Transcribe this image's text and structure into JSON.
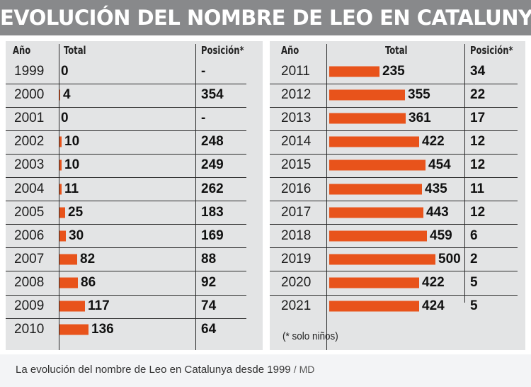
{
  "title": "EVOLUCIÓN DEL NOMBRE DE LEO EN CATALUNYA",
  "headers": {
    "year": "Año",
    "total": "Total",
    "position": "Posición*"
  },
  "footnote": "(* solo niños)",
  "caption": "La evolución del nombre de Leo en Catalunya desde 1999",
  "caption_source": "/ MD",
  "colors": {
    "bar": "#e8531b",
    "title_bg": "#88898b",
    "panel_bg": "#e3e4e5"
  },
  "chart_data": {
    "type": "bar",
    "title": "EVOLUCIÓN DEL NOMBRE DE LEO EN CATALUNYA",
    "columns": [
      "Año",
      "Total",
      "Posición*"
    ],
    "rows": [
      {
        "year": "1999",
        "total": 0,
        "position": "-"
      },
      {
        "year": "2000",
        "total": 4,
        "position": "354"
      },
      {
        "year": "2001",
        "total": 0,
        "position": "-"
      },
      {
        "year": "2002",
        "total": 10,
        "position": "248"
      },
      {
        "year": "2003",
        "total": 10,
        "position": "249"
      },
      {
        "year": "2004",
        "total": 11,
        "position": "262"
      },
      {
        "year": "2005",
        "total": 25,
        "position": "183"
      },
      {
        "year": "2006",
        "total": 30,
        "position": "169"
      },
      {
        "year": "2007",
        "total": 82,
        "position": "88"
      },
      {
        "year": "2008",
        "total": 86,
        "position": "92"
      },
      {
        "year": "2009",
        "total": 117,
        "position": "74"
      },
      {
        "year": "2010",
        "total": 136,
        "position": "64"
      },
      {
        "year": "2011",
        "total": 235,
        "position": "34"
      },
      {
        "year": "2012",
        "total": 355,
        "position": "22"
      },
      {
        "year": "2013",
        "total": 361,
        "position": "17"
      },
      {
        "year": "2014",
        "total": 422,
        "position": "12"
      },
      {
        "year": "2015",
        "total": 454,
        "position": "12"
      },
      {
        "year": "2016",
        "total": 435,
        "position": "11"
      },
      {
        "year": "2017",
        "total": 443,
        "position": "12"
      },
      {
        "year": "2018",
        "total": 459,
        "position": "6"
      },
      {
        "year": "2019",
        "total": 500,
        "position": "2"
      },
      {
        "year": "2020",
        "total": 422,
        "position": "5"
      },
      {
        "year": "2021",
        "total": 424,
        "position": "5"
      }
    ]
  }
}
